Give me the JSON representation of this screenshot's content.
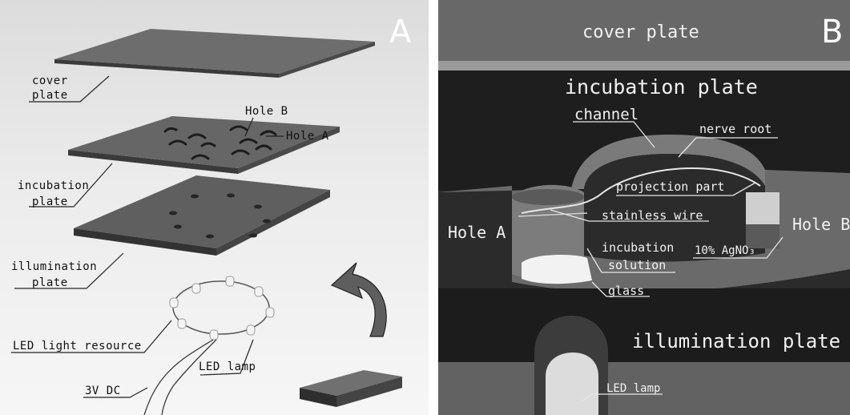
{
  "panel_a": {
    "letter": "A",
    "labels": {
      "cover_plate_line1": "cover",
      "cover_plate_line2": "plate",
      "hole_b": "Hole B",
      "hole_a": "Hole A",
      "incubation_plate_line1": "incubation",
      "incubation_plate_line2": "plate",
      "illumination_plate_line1": "illumination",
      "illumination_plate_line2": "plate",
      "led_light_resource": "LED light resource",
      "led_lamp": "LED lamp",
      "power": "3V DC"
    }
  },
  "panel_b": {
    "letter": "B",
    "labels": {
      "cover_plate": "cover plate",
      "incubation_plate": "incubation plate",
      "channel": "channel",
      "nerve_root": "nerve root",
      "projection_part": "projection part",
      "stainless_wire": "stainless wire",
      "hole_a": "Hole A",
      "hole_b": "Hole B",
      "incubation_solution_line1": "incubation",
      "incubation_solution_line2": "solution",
      "silver_nitrate": "10% AgNO₃",
      "glass": "glass",
      "illumination_plate": "illumination plate",
      "led_lamp": "LED lamp"
    }
  }
}
